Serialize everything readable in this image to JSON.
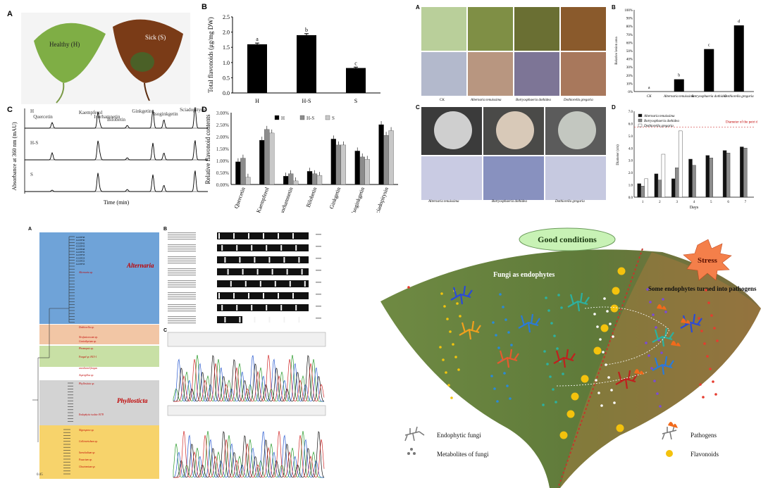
{
  "figure": {
    "panels": {
      "A": "A",
      "B": "B",
      "C": "C",
      "D": "D"
    },
    "healthy_label": "Healthy (H)",
    "sick_label": "Sick (S)"
  },
  "chart_data": [
    {
      "id": "total_flavonoids",
      "type": "bar",
      "categories": [
        "H",
        "H-S",
        "S"
      ],
      "values": [
        1.6,
        1.9,
        0.82
      ],
      "errors": [
        0.04,
        0.05,
        0.03
      ],
      "letters": [
        "a",
        "b",
        "c"
      ],
      "ylabel": "Total flavonoids (μg/mg DW)",
      "yticks": [
        "0.0",
        "0.5",
        "1.0",
        "1.5",
        "2.0",
        "2.5"
      ],
      "ylim": [
        0,
        2.5
      ]
    },
    {
      "id": "chromatogram",
      "type": "line",
      "ylabel": "Absorbance at 360 nm (mAU)",
      "xlabel": "Time (min)",
      "traces": [
        "H",
        "H-S",
        "S"
      ],
      "peaks": [
        "Quercetin",
        "Kaempferol",
        "Isorhamnetin",
        "Bilobetin",
        "Ginkgetin",
        "Isoginkgetin",
        "Sciadopitysin"
      ]
    },
    {
      "id": "relative_flavonoids",
      "type": "bar",
      "categories": [
        "Quercetin",
        "Kaempferol",
        "Isorhamnetin",
        "Bilobetin",
        "Ginkgetin",
        "Isoginkgetin",
        "Sciadopitysin"
      ],
      "series": [
        {
          "name": "H",
          "color": "#000000",
          "values": [
            0.95,
            1.85,
            0.35,
            0.55,
            1.9,
            1.4,
            2.5
          ]
        },
        {
          "name": "H-S",
          "color": "#8c8c8c",
          "values": [
            1.1,
            2.3,
            0.45,
            0.45,
            1.65,
            1.15,
            2.05
          ]
        },
        {
          "name": "S",
          "color": "#c8c8c8",
          "values": [
            0.3,
            2.15,
            0.15,
            0.38,
            1.65,
            1.05,
            2.25
          ]
        }
      ],
      "ylabel": "Relative flavonoid contents",
      "yticks": [
        "0.00%",
        "0.50%",
        "1.00%",
        "1.50%",
        "2.00%",
        "2.50%",
        "3.00%"
      ],
      "ylim": [
        0,
        3
      ]
    },
    {
      "id": "relative_lesion",
      "type": "bar",
      "categories": [
        "CK",
        "Alternaria tenuissima",
        "Botryosphaeria dothidea",
        "Dothiorella gregaria"
      ],
      "values": [
        0,
        15,
        52,
        81
      ],
      "letters": [
        "a",
        "b",
        "c",
        "d"
      ],
      "ylabel": "Relative lesion area",
      "yticks": [
        "0%",
        "10%",
        "20%",
        "30%",
        "40%",
        "50%",
        "60%",
        "70%",
        "80%",
        "90%",
        "100%"
      ],
      "ylim": [
        0,
        100
      ]
    },
    {
      "id": "colony_diameter",
      "type": "bar",
      "categories": [
        "1",
        "2",
        "3",
        "4",
        "5",
        "6",
        "7"
      ],
      "series": [
        {
          "name": "Alternaria tenuissima",
          "color": "#111111",
          "values": [
            1.1,
            1.9,
            1.5,
            3.1,
            3.4,
            3.8,
            4.1
          ]
        },
        {
          "name": "Botryosphaeria dothidea",
          "color": "#8c8c8c",
          "values": [
            0.9,
            1.4,
            2.4,
            2.6,
            3.2,
            3.6,
            4.0
          ]
        },
        {
          "name": "Dothiorella gregaria",
          "color": "#ffffff",
          "values": [
            1.5,
            3.5,
            5.4,
            0,
            0,
            0,
            0
          ]
        }
      ],
      "xlabel": "Days",
      "ylabel": "Diameter (cm)",
      "yticks": [
        "0.0",
        "1.0",
        "2.0",
        "3.0",
        "4.0",
        "5.0",
        "6.0",
        "7.0"
      ],
      "ylim": [
        0,
        7
      ],
      "petri_line": 5.7,
      "petri_label": "Diameter of the petri dish"
    }
  ],
  "fungi_panel": {
    "row_labels_top": [
      "CK",
      "Alternaria tenuissima",
      "Botryosphaeria dothidea",
      "Dothiorella gregaria"
    ],
    "row_labels_bottom": [
      "Alternaria tenuissima",
      "Botryosphaeria dothidea",
      "Dothiorella gregaria"
    ]
  },
  "tree": {
    "clade_alternaria": "Alternaria",
    "clade_phyllosticta": "Phyllosticta",
    "scale": "0.05",
    "leaves_blue": [
      "GLEF38",
      "GLEF30",
      "GLEF42",
      "GLEF43",
      "GLEF48",
      "GLEF35",
      "GLEF33",
      "GLEF23",
      "GLEF22",
      "GLEF33"
    ],
    "red_labels": [
      "Alternaria sp.",
      "Dothiorella sp.",
      "Neofusicoccum sp.",
      "Coniothyrium sp.",
      "Phomopsis sp.",
      "Fungal sp. H15-1",
      "uncultured fungus",
      "Aspergillus sp.",
      "Phyllosticta sp.",
      "Endophytic isolate 8178",
      "Nigrospora sp.",
      "Colletotrichum sp.",
      "Sarocladium sp.",
      "Fusarium sp.",
      "Chaetomium sp."
    ]
  },
  "schematic": {
    "good_conditions": "Good conditions",
    "stress": "Stress",
    "fungi_endophytes": "Fungi as endophytes",
    "turned_pathogens": "Some endophytes turned into pathogens",
    "legend_endophytic": "Endophytic fungi",
    "legend_metabolites": "Metabolites of fungi",
    "legend_pathogens": "Pathogens",
    "legend_flavonoids": "Flavonoids"
  }
}
